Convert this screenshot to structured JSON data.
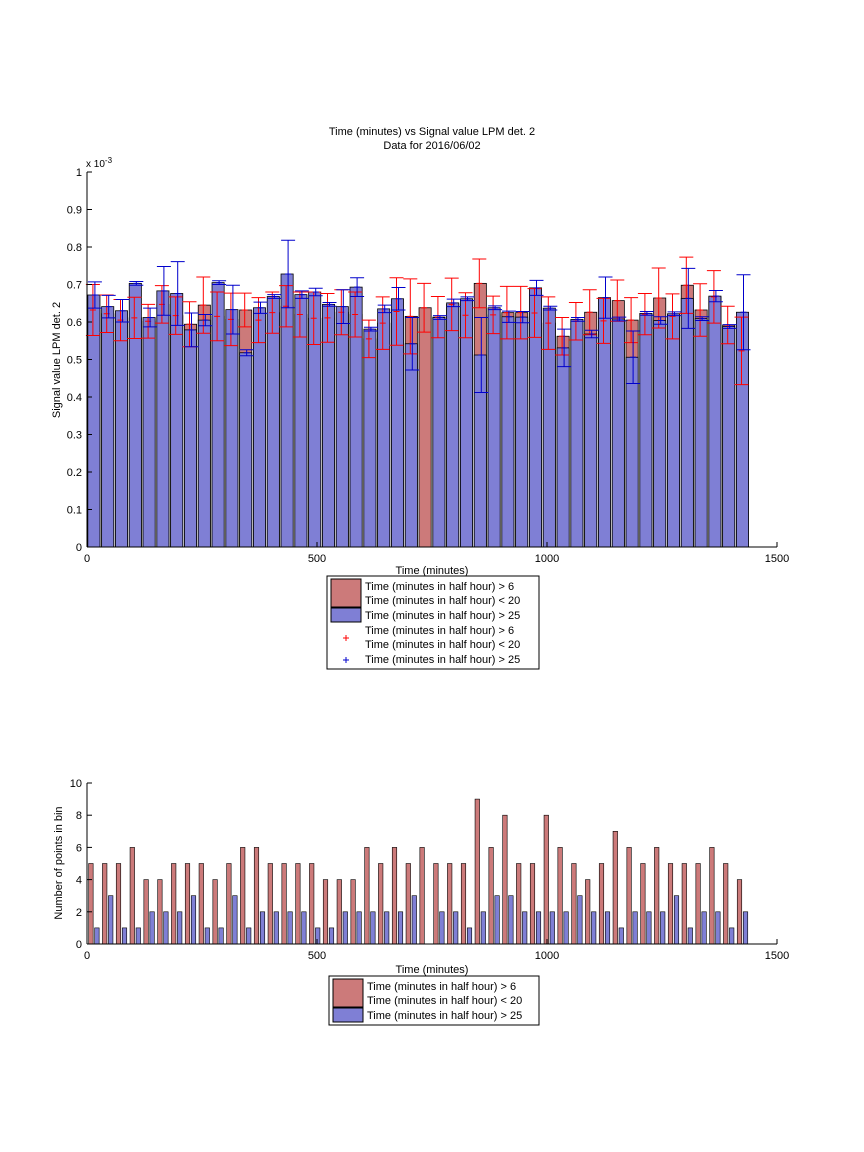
{
  "chart_data": [
    {
      "type": "bar",
      "title": "Time (minutes) vs Signal value LPM det. 2",
      "subtitle": "Data for 2016/06/02",
      "xlabel": "Time (minutes)",
      "ylabel": "Signal value LPM det. 2",
      "y_multiplier": "x 10",
      "y_multiplier_exp": "-3",
      "xlim": [
        0,
        1500
      ],
      "ylim": [
        0,
        1
      ],
      "xticks": [
        "0",
        "500",
        "1000",
        "1500"
      ],
      "yticks": [
        "0",
        "0.1",
        "0.2",
        "0.3",
        "0.4",
        "0.5",
        "0.6",
        "0.7",
        "0.8",
        "0.9",
        "1"
      ],
      "grid": false,
      "legend_position": "below",
      "legend": [
        {
          "kind": "bar",
          "color": "#cc7a7a",
          "lines": [
            "Time (minutes in half hour) > 6",
            "Time (minutes in half hour) < 20"
          ]
        },
        {
          "kind": "bar",
          "color": "#7f7fd5",
          "lines": [
            "Time (minutes in half hour) > 25"
          ]
        },
        {
          "kind": "marker",
          "color": "#ff0000",
          "lines": [
            "Time (minutes in half hour) > 6",
            "Time (minutes in half hour) < 20"
          ]
        },
        {
          "kind": "marker",
          "color": "#0000cc",
          "lines": [
            "Time (minutes in half hour) > 25"
          ]
        }
      ],
      "x": [
        15,
        45,
        75,
        105,
        135,
        165,
        195,
        225,
        255,
        285,
        315,
        345,
        375,
        405,
        435,
        465,
        495,
        525,
        555,
        585,
        615,
        645,
        675,
        705,
        735,
        765,
        795,
        825,
        855,
        885,
        915,
        945,
        975,
        1005,
        1035,
        1065,
        1095,
        1125,
        1155,
        1185,
        1215,
        1245,
        1275,
        1305,
        1335,
        1365,
        1395,
        1425
      ],
      "series": [
        {
          "name": "Time (minutes in half hour) > 6 / Time (minutes in half hour) < 20",
          "color": "#cc7a7a",
          "error_color": "#ff0000",
          "values": [
            0.632,
            0.622,
            0.605,
            0.611,
            0.602,
            0.647,
            0.617,
            0.594,
            0.645,
            0.615,
            0.607,
            0.632,
            0.605,
            0.625,
            0.642,
            0.62,
            0.61,
            0.611,
            0.626,
            0.62,
            0.555,
            0.597,
            0.628,
            0.615,
            0.638,
            0.613,
            0.647,
            0.618,
            0.703,
            0.619,
            0.625,
            0.625,
            0.624,
            0.597,
            0.562,
            0.602,
            0.626,
            0.603,
            0.657,
            0.605,
            0.621,
            0.664,
            0.615,
            0.698,
            0.632,
            0.667,
            0.592,
            0.523
          ],
          "error": [
            0.068,
            0.05,
            0.055,
            0.055,
            0.045,
            0.05,
            0.05,
            0.06,
            0.075,
            0.065,
            0.07,
            0.045,
            0.06,
            0.055,
            0.055,
            0.06,
            0.07,
            0.065,
            0.06,
            0.06,
            0.05,
            0.07,
            0.09,
            0.1,
            0.065,
            0.055,
            0.07,
            0.06,
            0.065,
            0.05,
            0.07,
            0.07,
            0.065,
            0.07,
            0.05,
            0.05,
            0.06,
            0.06,
            0.055,
            0.06,
            0.055,
            0.08,
            0.06,
            0.075,
            0.07,
            0.07,
            0.05,
            0.09
          ]
        },
        {
          "name": "Time (minutes in half hour) > 25",
          "color": "#7f7fd5",
          "error_color": "#0000cc",
          "values": [
            0.672,
            0.641,
            0.63,
            0.703,
            0.612,
            0.683,
            0.676,
            0.579,
            0.605,
            0.705,
            0.633,
            0.518,
            0.638,
            0.668,
            0.728,
            0.673,
            0.68,
            0.647,
            0.641,
            0.693,
            0.581,
            0.635,
            0.662,
            0.542,
            null,
            0.612,
            0.651,
            0.662,
            0.512,
            0.638,
            0.614,
            0.613,
            0.691,
            0.637,
            0.531,
            0.607,
            0.568,
            0.665,
            0.608,
            0.506,
            0.623,
            0.604,
            0.622,
            0.663,
            0.609,
            0.669,
            0.588,
            0.626
          ],
          "error": [
            0.035,
            0.03,
            0.03,
            0.005,
            0.025,
            0.065,
            0.085,
            0.045,
            0.015,
            0.005,
            0.065,
            0.008,
            0.015,
            0.005,
            0.09,
            0.01,
            0.01,
            0.005,
            0.045,
            0.025,
            0.005,
            0.01,
            0.03,
            0.07,
            0.0,
            0.005,
            0.01,
            0.005,
            0.1,
            0.005,
            0.015,
            0.015,
            0.02,
            0.005,
            0.05,
            0.005,
            0.01,
            0.055,
            0.005,
            0.07,
            0.005,
            0.01,
            0.005,
            0.08,
            0.005,
            0.015,
            0.005,
            0.1
          ]
        }
      ]
    },
    {
      "type": "bar",
      "title": "",
      "xlabel": "Time (minutes)",
      "ylabel": "Number of points in bin",
      "xlim": [
        0,
        1500
      ],
      "ylim": [
        0,
        10
      ],
      "xticks": [
        "0",
        "500",
        "1000",
        "1500"
      ],
      "yticks": [
        "0",
        "2",
        "4",
        "6",
        "8",
        "10"
      ],
      "grid": false,
      "legend_position": "below",
      "legend": [
        {
          "kind": "bar",
          "color": "#cc7a7a",
          "lines": [
            "Time (minutes in half hour) > 6",
            "Time (minutes in half hour) < 20"
          ]
        },
        {
          "kind": "bar",
          "color": "#7f7fd5",
          "lines": [
            "Time (minutes in half hour) > 25"
          ]
        }
      ],
      "x": [
        15,
        45,
        75,
        105,
        135,
        165,
        195,
        225,
        255,
        285,
        315,
        345,
        375,
        405,
        435,
        465,
        495,
        525,
        555,
        585,
        615,
        645,
        675,
        705,
        735,
        765,
        795,
        825,
        855,
        885,
        915,
        945,
        975,
        1005,
        1035,
        1065,
        1095,
        1125,
        1155,
        1185,
        1215,
        1245,
        1275,
        1305,
        1335,
        1365,
        1395,
        1425
      ],
      "series": [
        {
          "name": "Time (minutes in half hour) > 6 / Time (minutes in half hour) < 20",
          "color": "#cc7a7a",
          "values": [
            5,
            5,
            5,
            6,
            4,
            4,
            5,
            5,
            5,
            4,
            5,
            6,
            6,
            5,
            5,
            5,
            5,
            4,
            4,
            4,
            6,
            5,
            6,
            5,
            6,
            5,
            5,
            5,
            9,
            6,
            8,
            5,
            5,
            8,
            6,
            5,
            4,
            5,
            7,
            6,
            5,
            6,
            5,
            5,
            5,
            6,
            5,
            4
          ]
        },
        {
          "name": "Time (minutes in half hour) > 25",
          "color": "#7f7fd5",
          "values": [
            1,
            3,
            1,
            1,
            2,
            2,
            2,
            3,
            1,
            1,
            3,
            1,
            2,
            2,
            2,
            2,
            1,
            1,
            2,
            2,
            2,
            2,
            2,
            3,
            0,
            2,
            2,
            1,
            2,
            3,
            3,
            2,
            2,
            2,
            2,
            3,
            2,
            2,
            1,
            2,
            2,
            2,
            3,
            1,
            2,
            2,
            1,
            2
          ]
        }
      ]
    }
  ]
}
